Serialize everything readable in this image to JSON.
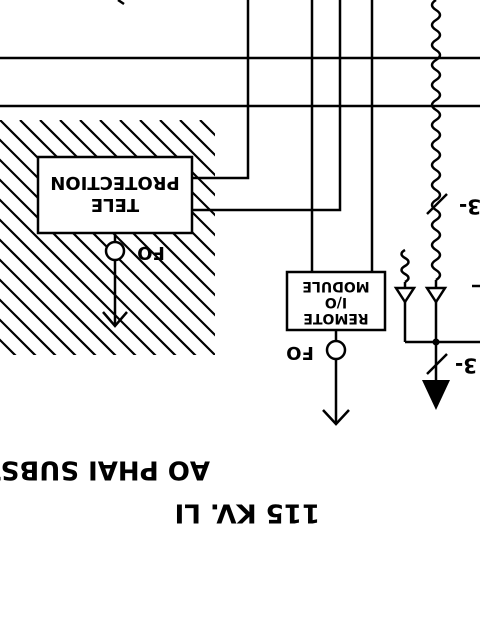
{
  "labels": {
    "tele_protection_line1": "TELE",
    "tele_protection_line2": "PROTECTION",
    "tele_fo": "FO",
    "remote_io_line1": "REMOTE",
    "remote_io_line2": "I/O",
    "remote_io_line3": "MODULE",
    "remote_fo": "FO",
    "voltage_tag_upper": "3-",
    "voltage_tag_lower": "3-",
    "substation_name": "AO PHAI SUBSTA",
    "line_rating": "115 KV. LI"
  },
  "colors": {
    "ink": "#000000",
    "background": "#ffffff"
  }
}
